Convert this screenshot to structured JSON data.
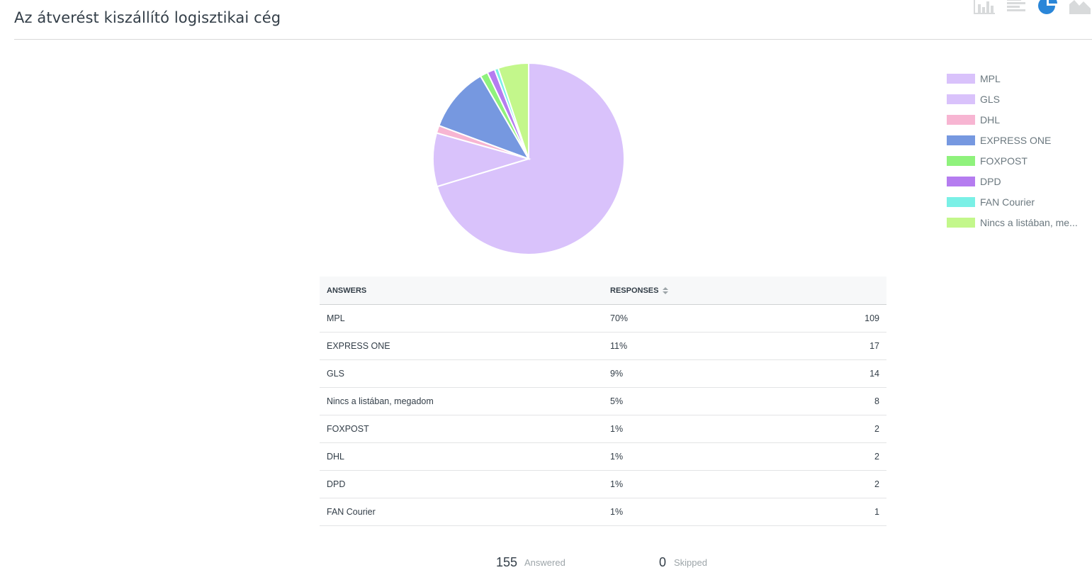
{
  "title": "Az átverést kiszállító logisztikai cég",
  "chart_type_buttons": [
    {
      "name": "vertical-bar-chart-icon",
      "active": false
    },
    {
      "name": "horizontal-bar-chart-icon",
      "active": false
    },
    {
      "name": "pie-chart-icon",
      "active": true
    },
    {
      "name": "area-chart-icon",
      "active": false
    }
  ],
  "colors": {
    "MPL": "#d9c2fb",
    "GLS": "#d9c2fb",
    "DHL": "#f7b5d2",
    "EXPRESS ONE": "#7698e0",
    "FOXPOST": "#8ff27c",
    "DPD": "#b57cf0",
    "FAN Courier": "#7af0e6",
    "Nincs a listában, me...": "#c3f78b",
    "active_icon": "#2a86d8",
    "inactive_icon": "#d8dadb"
  },
  "legend": [
    {
      "label": "MPL",
      "color": "#d9c2fb"
    },
    {
      "label": "GLS",
      "color": "#d9c2fb"
    },
    {
      "label": "DHL",
      "color": "#f7b5d2"
    },
    {
      "label": "EXPRESS ONE",
      "color": "#7698e0"
    },
    {
      "label": "FOXPOST",
      "color": "#8ff27c"
    },
    {
      "label": "DPD",
      "color": "#b57cf0"
    },
    {
      "label": "FAN Courier",
      "color": "#7af0e6"
    },
    {
      "label": "Nincs a listában, me...",
      "color": "#c3f78b"
    }
  ],
  "chart_data": {
    "type": "pie",
    "slices": [
      {
        "label": "MPL",
        "value": 109,
        "color": "#d9c2fb"
      },
      {
        "label": "GLS",
        "value": 14,
        "color": "#d9c2fb"
      },
      {
        "label": "DHL",
        "value": 2,
        "color": "#f7b5d2"
      },
      {
        "label": "EXPRESS ONE",
        "value": 17,
        "color": "#7698e0"
      },
      {
        "label": "FOXPOST",
        "value": 2,
        "color": "#8ff27c"
      },
      {
        "label": "DPD",
        "value": 2,
        "color": "#b57cf0"
      },
      {
        "label": "FAN Courier",
        "value": 1,
        "color": "#7af0e6"
      },
      {
        "label": "Nincs a listában, me...",
        "value": 8,
        "color": "#c3f78b"
      }
    ]
  },
  "table": {
    "header_answers": "ANSWERS",
    "header_responses": "RESPONSES",
    "rows": [
      {
        "answer": "MPL",
        "percent": "70%",
        "count": "109"
      },
      {
        "answer": "EXPRESS ONE",
        "percent": "11%",
        "count": "17"
      },
      {
        "answer": "GLS",
        "percent": "9%",
        "count": "14"
      },
      {
        "answer": "Nincs a listában, megadom",
        "percent": "5%",
        "count": "8"
      },
      {
        "answer": "FOXPOST",
        "percent": "1%",
        "count": "2"
      },
      {
        "answer": "DHL",
        "percent": "1%",
        "count": "2"
      },
      {
        "answer": "DPD",
        "percent": "1%",
        "count": "2"
      },
      {
        "answer": "FAN Courier",
        "percent": "1%",
        "count": "1"
      }
    ]
  },
  "summary": {
    "answered_count": "155",
    "answered_label": "Answered",
    "skipped_count": "0",
    "skipped_label": "Skipped"
  }
}
